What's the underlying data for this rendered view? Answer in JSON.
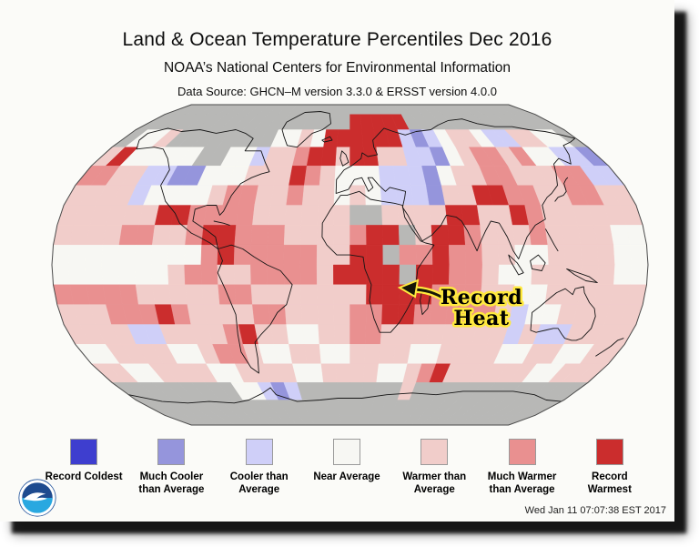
{
  "header": {
    "title": "Land & Ocean Temperature Percentiles Dec 2016",
    "subtitle": "NOAA’s National Centers for Environmental Information",
    "source": "Data Source: GHCN–M version 3.3.0 & ERSST version 4.0.0"
  },
  "map": {
    "annotation": {
      "line1": "Record",
      "line2": "Heat"
    }
  },
  "legend": {
    "items": [
      {
        "label": "Record Coldest",
        "color": "#3e3ecf"
      },
      {
        "label": "Much Cooler than Average",
        "color": "#9595dc"
      },
      {
        "label": "Cooler than Average",
        "color": "#cfcff8"
      },
      {
        "label": "Near Average",
        "color": "#f7f7f3"
      },
      {
        "label": "Warmer than Average",
        "color": "#f1cdca"
      },
      {
        "label": "Much Warmer than Average",
        "color": "#e99090"
      },
      {
        "label": "Record Warmest",
        "color": "#cb2d2d"
      }
    ]
  },
  "footer": {
    "timestamp": "Wed Jan 11 07:07:38 EST 2017"
  },
  "chart_data": {
    "type": "heatmap",
    "map_projection": "robinson",
    "title": "Land & Ocean Temperature Percentiles Dec 2016",
    "subtitle": "NOAA’s National Centers for Environmental Information",
    "data_source": "Data Source: GHCN–M version 3.3.0 & ERSST version 4.0.0",
    "generated": "Wed Jan 11 07:07:38 EST 2017",
    "legend_position": "bottom",
    "cell_size_degrees": 10,
    "grid_convention": "rows top to bottom = 90N to 90S, cols left to right = 180W to 180E",
    "palette": {
      "B": "#3e3ecf",
      "C": "#9595dc",
      "c": "#cfcff8",
      "W": "#f7f7f3",
      "p": "#f1cdca",
      "P": "#e99090",
      "R": "#cb2d2d",
      "G": "#b8b8b6"
    },
    "palette_meaning": {
      "B": "Record Coldest",
      "C": "Much Cooler than Average",
      "c": "Cooler than Average",
      "W": "Near Average",
      "p": "Warmer than Average",
      "P": "Much Warmer than Average",
      "R": "Record Warmest",
      "G": "gray (no value shown)"
    },
    "grid": [
      "GGGGGGGGGGGGGGGGGGGGGGGGGGGGGGGGGGGG",
      "GGGGGGGGGGGGGGGGGGRRRRRGGGGGGGGGGGGG",
      "GWWpGGGGGGGGWWpWRRRRRRcCcWppWccppWWG",
      "pRWWWWWGGWWcppPRRpRRppccCWpPPpPWWccC",
      "PPppccCCWWWpppRPpWWWcccCWppPPpppPPcc",
      "ppppcWWWWpPPppPppWpWcccCppRRPPppPPpp",
      "ppppppRRPPPPppppppGGppppRRppRPpppppp",
      "ppppPPppPRRPPPppppPRRGpRRPpppPppppWW",
      "WWWWWWWWWPRPPPPPppRRGPPRPPppWWppppWW",
      "WWWWWWWpPPppPPPPpRRRRGRRPPpWWpppppWW",
      "PPPPPpppppPPpppppppRRRRPPPppWWpppppp",
      "pppPPPRPppppPPppppPPRRPPPPPpcWWppppp",
      "ppppccppppPRppWWppPPppppppppcpccpppp",
      "WWppppWWpPPpWWppWWppppWWppppWWppWWpp",
      "ppWWppppWWppppWWppppWWpPRppppppWWppp",
      "GGGGGGGGGWWcCcGGGGGGGGpGGGGGGGGGGGGG",
      "GGGGGGGGGGGGGGGGGGGGGGGGGGGGGGGGGGGG",
      "GGGGGGGGGGGGGGGGGGGGGGGGGGGGGGGGGGGG"
    ],
    "annotation": {
      "text": "Record Heat",
      "points_to": "record-warmest cells over southeastern Africa"
    }
  }
}
